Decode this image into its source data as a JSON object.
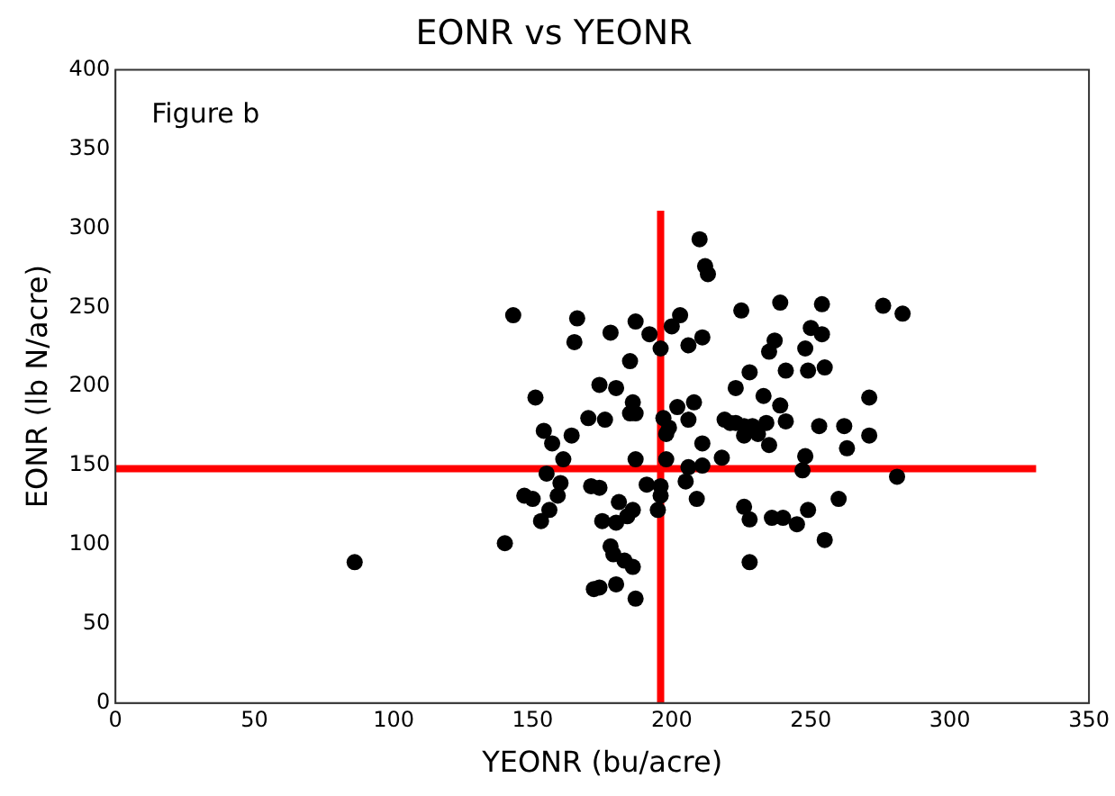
{
  "chart_data": {
    "type": "scatter",
    "title": "EONR vs YEONR",
    "xlabel": "YEONR (bu/acre)",
    "ylabel": "EONR (lb N/acre)",
    "annotations": [
      "Figure b"
    ],
    "xlim": [
      0,
      350
    ],
    "xticks": [
      0,
      50,
      100,
      150,
      200,
      250,
      300,
      350
    ],
    "ylim": [
      0,
      400
    ],
    "yticks": [
      0,
      50,
      100,
      150,
      200,
      250,
      300,
      350,
      400
    ],
    "grid": false,
    "legend": false,
    "series": [
      {
        "color": "#000000",
        "marker": "circle",
        "x": [
          86,
          143,
          140,
          151,
          154,
          157,
          164,
          161,
          155,
          160,
          159,
          147,
          150,
          156,
          153,
          166,
          165,
          178,
          187,
          192,
          196,
          200,
          203,
          206,
          211,
          210,
          212,
          213,
          185,
          174,
          180,
          186,
          185,
          187,
          170,
          176,
          197,
          202,
          208,
          206,
          199,
          198,
          211,
          218,
          211,
          206,
          198,
          187,
          171,
          174,
          191,
          196,
          196,
          205,
          209,
          195,
          181,
          186,
          184,
          180,
          175,
          178,
          179,
          183,
          186,
          172,
          174,
          180,
          187,
          228,
          226,
          228,
          236,
          240,
          245,
          249,
          255,
          260,
          281,
          247,
          248,
          263,
          271,
          262,
          253,
          271,
          235,
          241,
          239,
          233,
          223,
          228,
          241,
          249,
          255,
          248,
          235,
          237,
          250,
          254,
          225,
          239,
          254,
          276,
          283,
          219,
          223,
          226,
          229,
          231,
          234,
          221,
          226
        ],
        "values": [
          89,
          245,
          101,
          193,
          172,
          164,
          169,
          154,
          145,
          139,
          131,
          131,
          129,
          122,
          115,
          243,
          228,
          234,
          241,
          233,
          224,
          238,
          245,
          226,
          231,
          293,
          276,
          271,
          216,
          201,
          199,
          190,
          183,
          183,
          180,
          179,
          180,
          187,
          190,
          179,
          174,
          170,
          164,
          155,
          150,
          149,
          154,
          154,
          137,
          136,
          138,
          137,
          131,
          140,
          129,
          122,
          127,
          122,
          118,
          114,
          115,
          99,
          94,
          90,
          86,
          72,
          73,
          75,
          66,
          89,
          124,
          116,
          117,
          117,
          113,
          122,
          103,
          129,
          143,
          147,
          156,
          161,
          169,
          175,
          175,
          193,
          163,
          178,
          188,
          194,
          199,
          209,
          210,
          210,
          212,
          224,
          222,
          229,
          237,
          233,
          248,
          253,
          252,
          251,
          246,
          179,
          177,
          169,
          175,
          170,
          177,
          177,
          175
        ]
      },
      {
        "type": "line",
        "color": "#ff0000",
        "marker": "none",
        "x": [
          196,
          196
        ],
        "values": [
          0,
          311
        ]
      },
      {
        "type": "line",
        "color": "#ff0000",
        "marker": "none",
        "x": [
          0,
          331
        ],
        "values": [
          148,
          148
        ]
      }
    ]
  }
}
